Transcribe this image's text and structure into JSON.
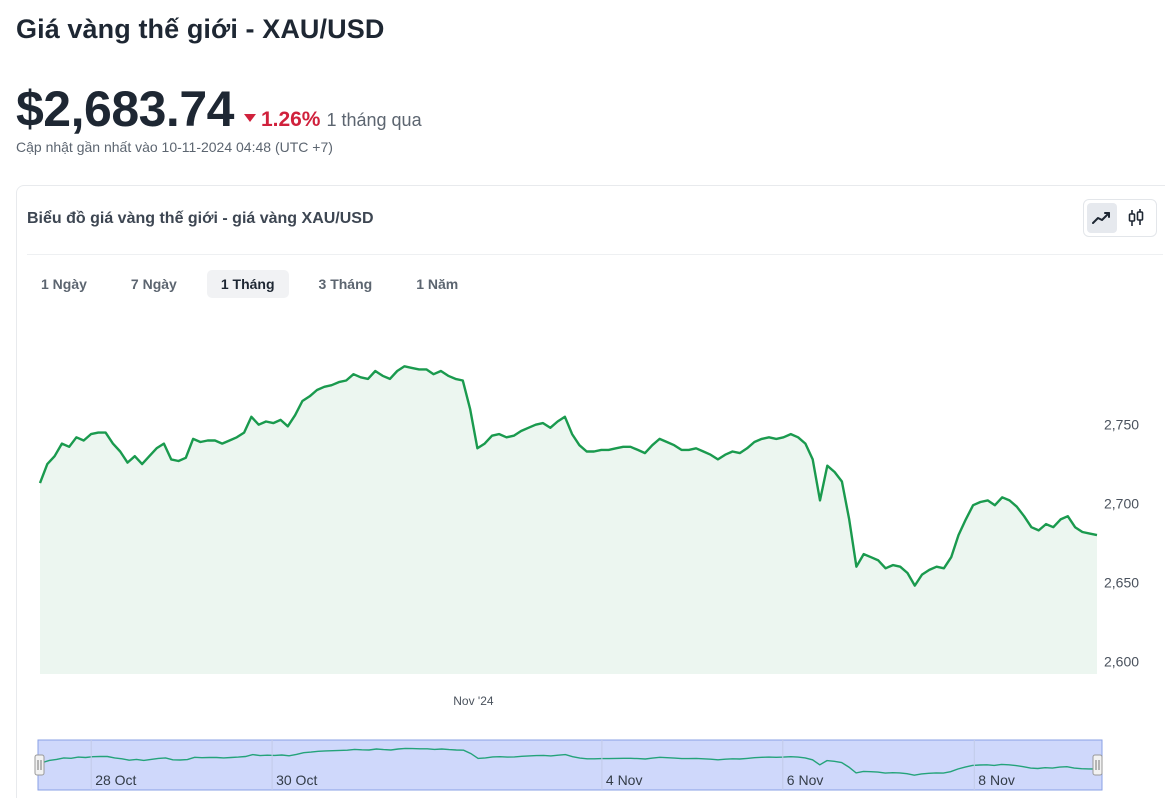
{
  "header": {
    "title": "Giá vàng thế giới - XAU/USD",
    "price": "$2,683.74",
    "change_pct": "1.26%",
    "change_period": "1 tháng qua",
    "updated": "Cập nhật gần nhất vào 10-11-2024 04:48 (UTC +7)"
  },
  "card": {
    "title": "Biểu đồ giá vàng thế giới - giá vàng XAU/USD",
    "chart_types": [
      {
        "icon": "line-chart-icon",
        "active": true
      },
      {
        "icon": "candlestick-icon",
        "active": false
      }
    ],
    "tabs": [
      {
        "label": "1 Ngày",
        "active": false
      },
      {
        "label": "7 Ngày",
        "active": false
      },
      {
        "label": "1 Tháng",
        "active": true
      },
      {
        "label": "3 Tháng",
        "active": false
      },
      {
        "label": "1 Năm",
        "active": false
      }
    ]
  },
  "colors": {
    "line": "#1a9a4e",
    "fill": "#ecf6f0",
    "down": "#d0213c",
    "navigator_fill": "#cfd8fb",
    "navigator_line": "#24a37a"
  },
  "chart_data": {
    "type": "area",
    "title": "",
    "x_ticks": [
      "Nov '24"
    ],
    "y_ticks": [
      2600,
      2650,
      2700,
      2750
    ],
    "ylim": [
      2592,
      2810
    ],
    "grid": false,
    "legend": "none",
    "points_y": [
      2713,
      2725,
      2730,
      2738,
      2736,
      2742,
      2740,
      2744,
      2745,
      2745,
      2738,
      2733,
      2726,
      2730,
      2725,
      2730,
      2735,
      2738,
      2728,
      2727,
      2729,
      2741,
      2739,
      2740,
      2740,
      2738,
      2740,
      2742,
      2745,
      2755,
      2750,
      2752,
      2751,
      2753,
      2749,
      2756,
      2765,
      2768,
      2772,
      2774,
      2775,
      2777,
      2778,
      2782,
      2780,
      2779,
      2784,
      2781,
      2779,
      2784,
      2787,
      2786,
      2785,
      2785,
      2782,
      2784,
      2781,
      2779,
      2778,
      2760,
      2735,
      2738,
      2743,
      2744,
      2742,
      2743,
      2746,
      2748,
      2750,
      2751,
      2748,
      2752,
      2755,
      2744,
      2737,
      2733,
      2733,
      2734,
      2734,
      2735,
      2736,
      2736,
      2734,
      2732,
      2737,
      2741,
      2739,
      2737,
      2734,
      2734,
      2735,
      2733,
      2731,
      2728,
      2731,
      2733,
      2732,
      2735,
      2739,
      2741,
      2742,
      2741,
      2742,
      2744,
      2742,
      2738,
      2728,
      2702,
      2724,
      2720,
      2714,
      2690,
      2660,
      2668,
      2666,
      2664,
      2659,
      2661,
      2660,
      2656,
      2648,
      2655,
      2658,
      2660,
      2659,
      2666,
      2680,
      2690,
      2699,
      2701,
      2702,
      2699,
      2704,
      2702,
      2698,
      2692,
      2685,
      2683,
      2687,
      2685,
      2690,
      2692,
      2685,
      2682,
      2681,
      2680
    ],
    "x_tick_positions": [
      0.41
    ],
    "navigator": {
      "labels": [
        "28 Oct",
        "30 Oct",
        "4 Nov",
        "6 Nov",
        "8 Nov"
      ],
      "label_positions": [
        0.05,
        0.22,
        0.53,
        0.7,
        0.88
      ]
    }
  }
}
